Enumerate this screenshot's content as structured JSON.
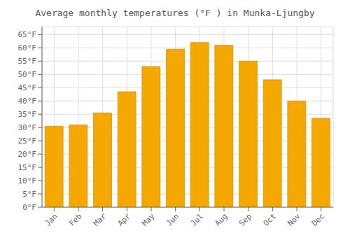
{
  "chart_data": {
    "type": "bar",
    "title": "Average monthly temperatures (°F ) in Munka-Ljungby",
    "categories": [
      "Jan",
      "Feb",
      "Mar",
      "Apr",
      "May",
      "Jun",
      "Jul",
      "Aug",
      "Sep",
      "Oct",
      "Nov",
      "Dec"
    ],
    "values": [
      30.5,
      31.0,
      35.5,
      43.5,
      53.0,
      59.5,
      62.0,
      61.0,
      55.0,
      48.0,
      40.0,
      33.5
    ],
    "color": "#F5A800",
    "ylim": [
      0,
      68
    ],
    "yticks": [
      {
        "value": 0,
        "label": "0°F"
      },
      {
        "value": 5,
        "label": "5°F"
      },
      {
        "value": 10,
        "label": "10°F"
      },
      {
        "value": 15,
        "label": "15°F"
      },
      {
        "value": 20,
        "label": "20°F"
      },
      {
        "value": 25,
        "label": "25°F"
      },
      {
        "value": 30,
        "label": "30°F"
      },
      {
        "value": 35,
        "label": "35°F"
      },
      {
        "value": 40,
        "label": "40°F"
      },
      {
        "value": 45,
        "label": "45°F"
      },
      {
        "value": 50,
        "label": "50°F"
      },
      {
        "value": 55,
        "label": "55°F"
      },
      {
        "value": 60,
        "label": "60°F"
      },
      {
        "value": 65,
        "label": "65°F"
      }
    ],
    "grid": true
  }
}
